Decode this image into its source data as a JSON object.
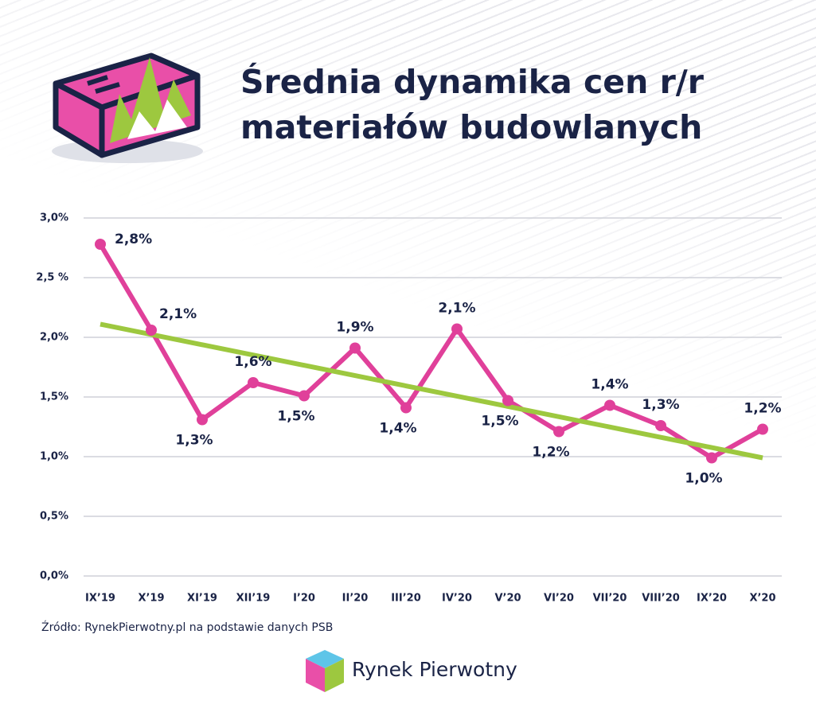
{
  "chart_data": {
    "type": "line",
    "title": [
      "Średnia dynamika cen r/r",
      "materiałów budowlanych"
    ],
    "categories": [
      "IX’19",
      "X’19",
      "XI’19",
      "XII’19",
      "I’20",
      "II’20",
      "III’20",
      "IV’20",
      "V’20",
      "VI’20",
      "VII’20",
      "VIII’20",
      "IX’20",
      "X’20"
    ],
    "series": [
      {
        "color": "#e0409a",
        "values": [
          2.78,
          2.06,
          1.31,
          1.62,
          1.51,
          1.91,
          1.41,
          2.07,
          1.47,
          1.21,
          1.43,
          1.26,
          0.99,
          1.23
        ],
        "value_labels": [
          "2,8%",
          "2,1%",
          "1,3%",
          "1,6%",
          "1,5%",
          "1,9%",
          "1,4%",
          "2,1%",
          "1,5%",
          "1,2%",
          "1,4%",
          "1,3%",
          "1,0%",
          "1,2%"
        ]
      }
    ],
    "trendline": {
      "color": "#9dc83f",
      "values": [
        2.11,
        0.99
      ]
    },
    "ylim": [
      0,
      3
    ],
    "yticks": [
      {
        "value": 0,
        "label": "0,0%"
      },
      {
        "value": 0.5,
        "label": "0,5%"
      },
      {
        "value": 1,
        "label": "1,0%"
      },
      {
        "value": 1.5,
        "label": "1,5%"
      },
      {
        "value": 2,
        "label": "2,0%"
      },
      {
        "value": 2.5,
        "label": "2,5 %"
      },
      {
        "value": 3,
        "label": "3,0%"
      }
    ],
    "grid": true,
    "source": "Źródło: RynekPierwotny.pl na podstawie danych PSB",
    "brand": "Rynek Pierwotny"
  }
}
